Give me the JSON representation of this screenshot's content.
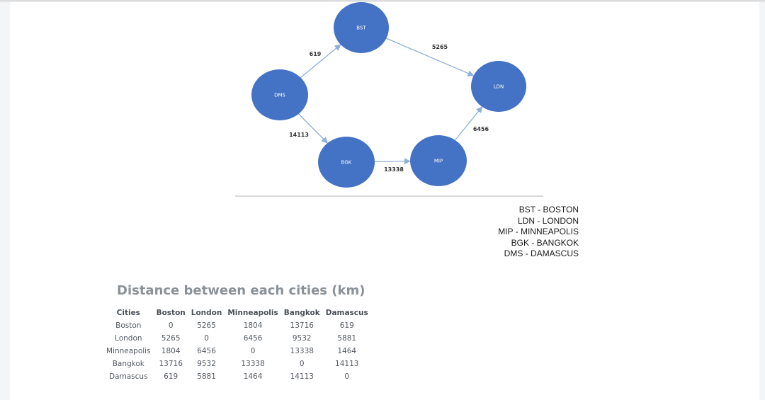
{
  "diagram": {
    "nodes": [
      {
        "id": "BST",
        "label": "BST"
      },
      {
        "id": "LDN",
        "label": "LDN"
      },
      {
        "id": "DMS",
        "label": "DMS"
      },
      {
        "id": "BGK",
        "label": "BGK"
      },
      {
        "id": "MIP",
        "label": "MIP"
      }
    ],
    "edges": [
      {
        "from": "DMS",
        "to": "BST",
        "label": "619"
      },
      {
        "from": "BST",
        "to": "LDN",
        "label": "5265"
      },
      {
        "from": "DMS",
        "to": "BGK",
        "label": "14113"
      },
      {
        "from": "BGK",
        "to": "MIP",
        "label": "13338"
      },
      {
        "from": "MIP",
        "to": "LDN",
        "label": "6456"
      }
    ],
    "node_color": "#4472c4",
    "edge_color": "#8fb0d8"
  },
  "legend": [
    "BST - BOSTON",
    "LDN - LONDON",
    "MIP - MINNEAPOLIS",
    "BGK - BANGKOK",
    "DMS - DAMASCUS"
  ],
  "table": {
    "title": "Distance between each cities (km)",
    "headers": [
      "Cities",
      "Boston",
      "London",
      "Minneapolis",
      "Bangkok",
      "Damascus"
    ],
    "rows": [
      [
        "Boston",
        "0",
        "5265",
        "1804",
        "13716",
        "619"
      ],
      [
        "London",
        "5265",
        "0",
        "6456",
        "9532",
        "5881"
      ],
      [
        "Minneapolis",
        "1804",
        "6456",
        "0",
        "13338",
        "1464"
      ],
      [
        "Bangkok",
        "13716",
        "9532",
        "13338",
        "0",
        "14113"
      ],
      [
        "Damascus",
        "619",
        "5881",
        "1464",
        "14113",
        "0"
      ]
    ]
  }
}
